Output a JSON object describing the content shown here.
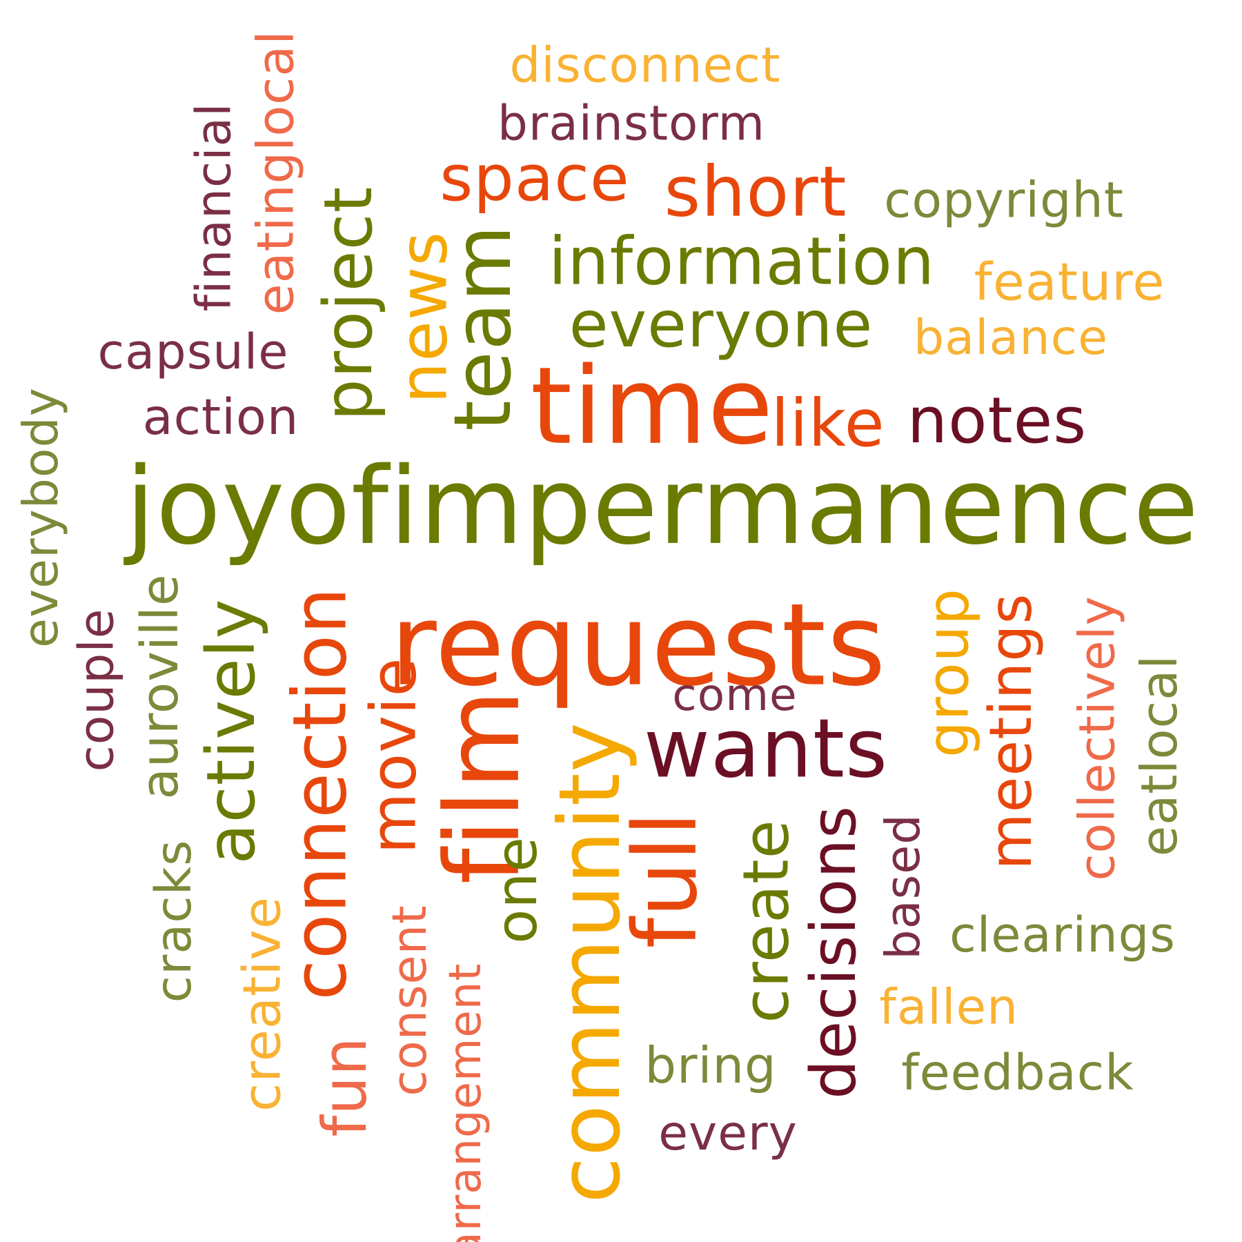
{
  "palette": {
    "olive": "#6b7a00",
    "sage": "#7c8a3a",
    "orange": "#e8470c",
    "coral": "#ef6a4a",
    "gold": "#f9b233",
    "amber": "#f5a800",
    "plum": "#7a2f45",
    "maroon": "#6b0f24"
  },
  "words": [
    {
      "id": "joyofimpermanence",
      "text": "joyofimpermanence",
      "color": "#6b7a00"
    },
    {
      "id": "requests",
      "text": "requests",
      "color": "#e8470c"
    },
    {
      "id": "time",
      "text": "time",
      "color": "#e8470c"
    },
    {
      "id": "wants",
      "text": "wants",
      "color": "#6b0f24"
    },
    {
      "id": "community",
      "text": "community",
      "color": "#f5a800"
    },
    {
      "id": "film",
      "text": "film",
      "color": "#e8470c"
    },
    {
      "id": "connection",
      "text": "connection",
      "color": "#e8470c"
    },
    {
      "id": "team",
      "text": "team",
      "color": "#6b7a00"
    },
    {
      "id": "information",
      "text": "information",
      "color": "#6b7a00"
    },
    {
      "id": "everyone",
      "text": "everyone",
      "color": "#6b7a00"
    },
    {
      "id": "notes",
      "text": "notes",
      "color": "#6b0f24"
    },
    {
      "id": "like",
      "text": "like",
      "color": "#e8470c"
    },
    {
      "id": "space",
      "text": "space",
      "color": "#e8470c"
    },
    {
      "id": "short",
      "text": "short",
      "color": "#e8470c"
    },
    {
      "id": "project",
      "text": "project",
      "color": "#6b7a00"
    },
    {
      "id": "news",
      "text": "news",
      "color": "#f5a800"
    },
    {
      "id": "actively",
      "text": "actively",
      "color": "#6b7a00"
    },
    {
      "id": "movie",
      "text": "movie",
      "color": "#e8470c"
    },
    {
      "id": "full",
      "text": "full",
      "color": "#e8470c"
    },
    {
      "id": "group",
      "text": "group",
      "color": "#f5a800"
    },
    {
      "id": "meetings",
      "text": "meetings",
      "color": "#e8470c"
    },
    {
      "id": "decisions",
      "text": "decisions",
      "color": "#6b0f24"
    },
    {
      "id": "create",
      "text": "create",
      "color": "#6b7a00"
    },
    {
      "id": "one",
      "text": "one",
      "color": "#6b7a00"
    },
    {
      "id": "come",
      "text": "come",
      "color": "#7a2f45"
    },
    {
      "id": "disconnect",
      "text": "disconnect",
      "color": "#f9b233"
    },
    {
      "id": "brainstorm",
      "text": "brainstorm",
      "color": "#7a2f45"
    },
    {
      "id": "copyright",
      "text": "copyright",
      "color": "#7c8a3a"
    },
    {
      "id": "feature",
      "text": "feature",
      "color": "#f9b233"
    },
    {
      "id": "balance",
      "text": "balance",
      "color": "#f9b233"
    },
    {
      "id": "capsule",
      "text": "capsule",
      "color": "#7a2f45"
    },
    {
      "id": "action",
      "text": "action",
      "color": "#7a2f45"
    },
    {
      "id": "financial",
      "text": "financial",
      "color": "#7a2f45"
    },
    {
      "id": "eatinglocal",
      "text": "eatinglocal",
      "color": "#ef6a4a"
    },
    {
      "id": "everybody",
      "text": "everybody",
      "color": "#7c8a3a"
    },
    {
      "id": "couple",
      "text": "couple",
      "color": "#7a2f45"
    },
    {
      "id": "auroville",
      "text": "auroville",
      "color": "#7c8a3a"
    },
    {
      "id": "cracks",
      "text": "cracks",
      "color": "#7c8a3a"
    },
    {
      "id": "creative",
      "text": "creative",
      "color": "#f9b233"
    },
    {
      "id": "fun",
      "text": "fun",
      "color": "#ef6a4a"
    },
    {
      "id": "consent",
      "text": "consent",
      "color": "#ef6a4a"
    },
    {
      "id": "arrangement",
      "text": "arrangement",
      "color": "#ef6a4a"
    },
    {
      "id": "collectively",
      "text": "collectively",
      "color": "#ef6a4a"
    },
    {
      "id": "eatlocal",
      "text": "eatlocal",
      "color": "#7c8a3a"
    },
    {
      "id": "based",
      "text": "based",
      "color": "#7a2f45"
    },
    {
      "id": "clearings",
      "text": "clearings",
      "color": "#7c8a3a"
    },
    {
      "id": "fallen",
      "text": "fallen",
      "color": "#f9b233"
    },
    {
      "id": "feedback",
      "text": "feedback",
      "color": "#7c8a3a"
    },
    {
      "id": "bring",
      "text": "bring",
      "color": "#7c8a3a"
    },
    {
      "id": "every",
      "text": "every",
      "color": "#7a2f45"
    }
  ]
}
